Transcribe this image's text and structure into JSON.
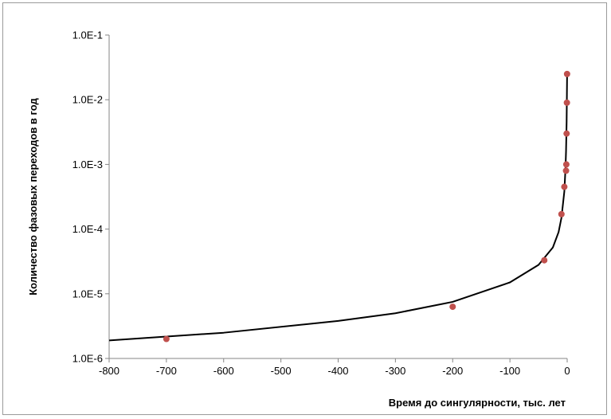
{
  "chart_data": {
    "type": "scatter",
    "xlabel": "Время до сингулярности, тыс. лет",
    "ylabel": "Количество фазовых переходов в год",
    "xlim": [
      -800,
      0
    ],
    "ylim": [
      1e-06,
      0.1
    ],
    "y_scale": "log",
    "grid": false,
    "legend": "none",
    "x_ticks": [
      "-800",
      "-700",
      "-600",
      "-500",
      "-400",
      "-300",
      "-200",
      "-100",
      "0"
    ],
    "y_ticks": [
      "1.0E-6",
      "1.0E-5",
      "1.0E-4",
      "1.0E-3",
      "1.0E-2",
      "1.0E-1"
    ],
    "series": [
      {
        "type": "scatter",
        "color": "#c0504d",
        "points": [
          {
            "x": -700,
            "y": 2e-06
          },
          {
            "x": -200,
            "y": 6.3e-06
          },
          {
            "x": -40,
            "y": 3.3e-05
          },
          {
            "x": -10,
            "y": 0.00017
          },
          {
            "x": -5,
            "y": 0.00045
          },
          {
            "x": -2,
            "y": 0.0008
          },
          {
            "x": -1.5,
            "y": 0.001
          },
          {
            "x": -1,
            "y": 0.003
          },
          {
            "x": -0.5,
            "y": 0.009
          },
          {
            "x": -0.2,
            "y": 0.025
          }
        ]
      },
      {
        "type": "line",
        "color": "#000000",
        "points": [
          {
            "x": -800,
            "y": 1.9e-06
          },
          {
            "x": -600,
            "y": 2.5e-06
          },
          {
            "x": -400,
            "y": 3.8e-06
          },
          {
            "x": -300,
            "y": 5e-06
          },
          {
            "x": -200,
            "y": 7.5e-06
          },
          {
            "x": -100,
            "y": 1.5e-05
          },
          {
            "x": -50,
            "y": 2.8e-05
          },
          {
            "x": -25,
            "y": 5.2e-05
          },
          {
            "x": -15,
            "y": 9e-05
          },
          {
            "x": -10,
            "y": 0.00015
          },
          {
            "x": -5,
            "y": 0.00038
          },
          {
            "x": -3,
            "y": 0.00085
          },
          {
            "x": -2,
            "y": 0.0016
          },
          {
            "x": -1,
            "y": 0.0045
          },
          {
            "x": -0.5,
            "y": 0.012
          },
          {
            "x": -0.1,
            "y": 0.027
          }
        ]
      }
    ]
  }
}
